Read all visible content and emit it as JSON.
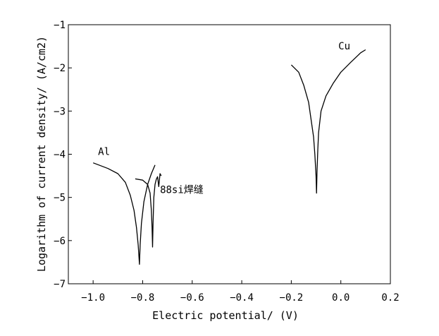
{
  "chart_data": {
    "type": "line",
    "xlabel": "Electric potential/ (V)",
    "ylabel": "Logarithm of current density/ (A/cm2)",
    "xlim": [
      -1.1,
      0.2
    ],
    "ylim": [
      -7,
      -1
    ],
    "x_ticks": [
      -1.0,
      -0.8,
      -0.6,
      -0.4,
      -0.2,
      0.0,
      0.2
    ],
    "x_tick_labels": [
      "−1.0",
      "−0.8",
      "−0.6",
      "−0.4",
      "−0.2",
      "0.0",
      "0.2"
    ],
    "y_ticks": [
      -7,
      -6,
      -5,
      -4,
      -3,
      -2,
      -1
    ],
    "y_tick_labels": [
      "−7",
      "−6",
      "−5",
      "−4",
      "−3",
      "−2",
      "−1"
    ],
    "grid": false,
    "legend": "none",
    "annotations": [
      {
        "text": "Al",
        "x": -0.98,
        "y": -4.02
      },
      {
        "text": "88si焊缝",
        "x": -0.73,
        "y": -4.9
      },
      {
        "text": "Cu",
        "x": -0.01,
        "y": -1.57
      }
    ],
    "series": [
      {
        "color": "#000000",
        "points": [
          [
            -1.0,
            -4.2
          ],
          [
            -0.94,
            -4.33
          ],
          [
            -0.9,
            -4.45
          ],
          [
            -0.87,
            -4.65
          ],
          [
            -0.85,
            -4.95
          ],
          [
            -0.835,
            -5.3
          ],
          [
            -0.825,
            -5.7
          ],
          [
            -0.818,
            -6.1
          ],
          [
            -0.813,
            -6.55
          ],
          [
            -0.81,
            -6.1
          ],
          [
            -0.805,
            -5.6
          ],
          [
            -0.795,
            -5.1
          ],
          [
            -0.78,
            -4.7
          ],
          [
            -0.765,
            -4.45
          ],
          [
            -0.75,
            -4.25
          ]
        ]
      },
      {
        "color": "#000000",
        "points": [
          [
            -0.83,
            -4.57
          ],
          [
            -0.8,
            -4.6
          ],
          [
            -0.78,
            -4.7
          ],
          [
            -0.77,
            -4.9
          ],
          [
            -0.765,
            -5.3
          ],
          [
            -0.762,
            -5.7
          ],
          [
            -0.76,
            -6.15
          ],
          [
            -0.758,
            -5.6
          ],
          [
            -0.755,
            -5.0
          ],
          [
            -0.75,
            -4.7
          ],
          [
            -0.745,
            -4.58
          ],
          [
            -0.74,
            -4.52
          ],
          [
            -0.735,
            -4.75
          ],
          [
            -0.73,
            -4.45
          ],
          [
            -0.725,
            -4.5
          ]
        ]
      },
      {
        "color": "#000000",
        "points": [
          [
            -0.2,
            -1.93
          ],
          [
            -0.17,
            -2.1
          ],
          [
            -0.15,
            -2.4
          ],
          [
            -0.13,
            -2.8
          ],
          [
            -0.12,
            -3.2
          ],
          [
            -0.11,
            -3.6
          ],
          [
            -0.105,
            -4.0
          ],
          [
            -0.1,
            -4.5
          ],
          [
            -0.098,
            -4.9
          ],
          [
            -0.096,
            -4.4
          ],
          [
            -0.093,
            -3.9
          ],
          [
            -0.09,
            -3.5
          ],
          [
            -0.08,
            -3.0
          ],
          [
            -0.06,
            -2.65
          ],
          [
            -0.03,
            -2.35
          ],
          [
            0.0,
            -2.1
          ],
          [
            0.04,
            -1.87
          ],
          [
            0.08,
            -1.65
          ],
          [
            0.1,
            -1.58
          ]
        ]
      }
    ]
  }
}
